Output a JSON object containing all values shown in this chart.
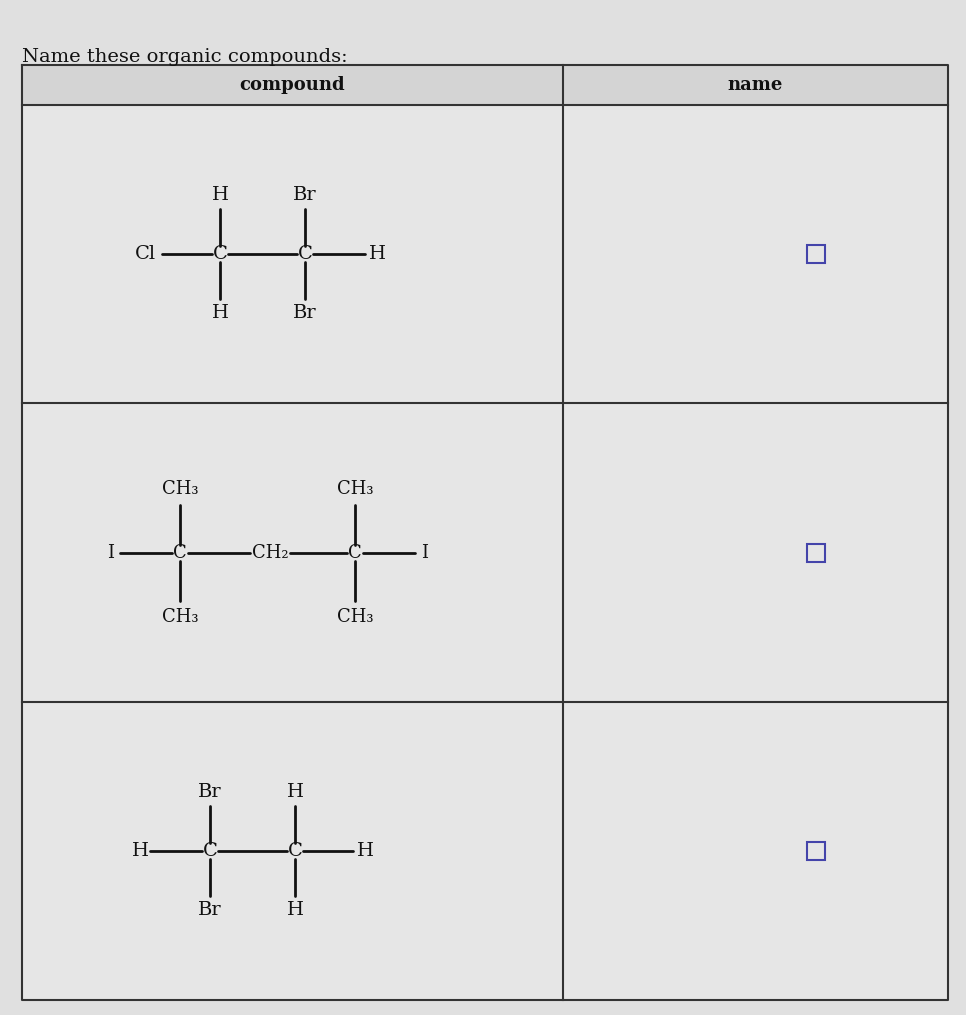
{
  "title": "Name these organic compounds:",
  "title_fontsize": 14,
  "col1_header": "compound",
  "col2_header": "name",
  "background_color": "#e0e0e0",
  "table_bg": "#e8e8e8",
  "header_bg": "#d0d0d0",
  "border_color": "#333333",
  "text_color": "#111111",
  "font_family": "DejaVu Serif",
  "checkbox_color": "#4444aa",
  "figsize": [
    9.66,
    10.15
  ],
  "dpi": 100
}
